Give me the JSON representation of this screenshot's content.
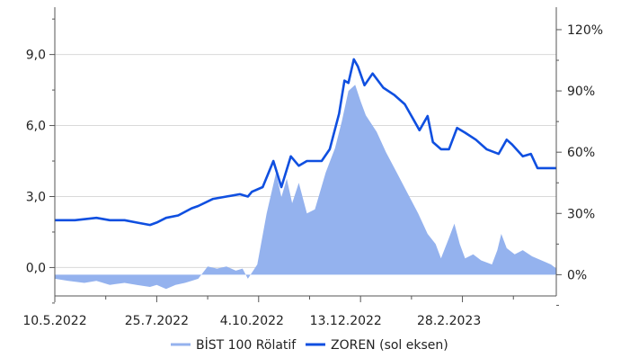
{
  "chart_data": {
    "type": "line",
    "x_axis": {
      "ticks": [
        "10.5.2022",
        "25.7.2022",
        "4.10.2022",
        "13.12.2022",
        "28.2.2023"
      ],
      "tick_dates": [
        "2022-05-10",
        "2022-07-25",
        "2022-10-04",
        "2022-12-13",
        "2023-02-28"
      ],
      "range": [
        "2022-05-10",
        "2023-05-19"
      ]
    },
    "y_left": {
      "ticks": [
        "0,0",
        "3,0",
        "6,0",
        "9,0"
      ],
      "tick_values": [
        0,
        3,
        6,
        9
      ],
      "range": [
        -1.2,
        11
      ]
    },
    "y_right": {
      "ticks": [
        "0%",
        "30%",
        "60%",
        "90%",
        "120%"
      ],
      "tick_values": [
        0,
        30,
        60,
        90,
        120
      ],
      "range": [
        -10.4,
        131
      ]
    },
    "grid": true,
    "legend_position": "bottom",
    "series": [
      {
        "name": "BİST 100 Rölatif",
        "type": "area",
        "axis": "right",
        "color": "#94b2ee",
        "points": [
          [
            "2022-05-10",
            -2
          ],
          [
            "2022-05-20",
            -3
          ],
          [
            "2022-06-01",
            -4
          ],
          [
            "2022-06-10",
            -3
          ],
          [
            "2022-06-20",
            -5
          ],
          [
            "2022-07-01",
            -4
          ],
          [
            "2022-07-10",
            -5
          ],
          [
            "2022-07-20",
            -6
          ],
          [
            "2022-07-25",
            -5
          ],
          [
            "2022-08-01",
            -7
          ],
          [
            "2022-08-08",
            -5
          ],
          [
            "2022-08-15",
            -4
          ],
          [
            "2022-08-20",
            -3
          ],
          [
            "2022-08-25",
            -2
          ],
          [
            "2022-09-01",
            4
          ],
          [
            "2022-09-08",
            3
          ],
          [
            "2022-09-15",
            4
          ],
          [
            "2022-09-22",
            2
          ],
          [
            "2022-09-27",
            3
          ],
          [
            "2022-10-01",
            -2
          ],
          [
            "2022-10-04",
            1
          ],
          [
            "2022-10-08",
            5
          ],
          [
            "2022-10-15",
            30
          ],
          [
            "2022-10-22",
            50
          ],
          [
            "2022-10-26",
            38
          ],
          [
            "2022-10-30",
            47
          ],
          [
            "2022-11-03",
            35
          ],
          [
            "2022-11-08",
            45
          ],
          [
            "2022-11-14",
            30
          ],
          [
            "2022-11-20",
            32
          ],
          [
            "2022-11-28",
            50
          ],
          [
            "2022-12-05",
            62
          ],
          [
            "2022-12-10",
            75
          ],
          [
            "2022-12-15",
            90
          ],
          [
            "2022-12-20",
            93
          ],
          [
            "2022-12-24",
            85
          ],
          [
            "2022-12-28",
            78
          ],
          [
            "2023-01-05",
            70
          ],
          [
            "2023-01-12",
            60
          ],
          [
            "2023-01-20",
            50
          ],
          [
            "2023-01-28",
            40
          ],
          [
            "2023-02-05",
            30
          ],
          [
            "2023-02-12",
            20
          ],
          [
            "2023-02-18",
            15
          ],
          [
            "2023-02-22",
            8
          ],
          [
            "2023-02-28",
            18
          ],
          [
            "2023-03-04",
            25
          ],
          [
            "2023-03-08",
            15
          ],
          [
            "2023-03-12",
            8
          ],
          [
            "2023-03-18",
            10
          ],
          [
            "2023-03-24",
            7
          ],
          [
            "2023-04-01",
            5
          ],
          [
            "2023-04-05",
            12
          ],
          [
            "2023-04-08",
            20
          ],
          [
            "2023-04-12",
            13
          ],
          [
            "2023-04-18",
            10
          ],
          [
            "2023-04-24",
            12
          ],
          [
            "2023-05-01",
            9
          ],
          [
            "2023-05-08",
            7
          ],
          [
            "2023-05-15",
            5
          ],
          [
            "2023-05-19",
            3
          ]
        ]
      },
      {
        "name": "ZOREN (sol eksen)",
        "type": "line",
        "axis": "left",
        "color": "#0f4fe0",
        "points": [
          [
            "2022-05-10",
            2.0
          ],
          [
            "2022-05-25",
            2.0
          ],
          [
            "2022-06-10",
            2.1
          ],
          [
            "2022-06-20",
            2.0
          ],
          [
            "2022-07-01",
            2.0
          ],
          [
            "2022-07-10",
            1.9
          ],
          [
            "2022-07-20",
            1.8
          ],
          [
            "2022-07-25",
            1.9
          ],
          [
            "2022-08-01",
            2.1
          ],
          [
            "2022-08-10",
            2.2
          ],
          [
            "2022-08-20",
            2.5
          ],
          [
            "2022-08-25",
            2.6
          ],
          [
            "2022-09-05",
            2.9
          ],
          [
            "2022-09-15",
            3.0
          ],
          [
            "2022-09-25",
            3.1
          ],
          [
            "2022-10-01",
            3.0
          ],
          [
            "2022-10-04",
            3.2
          ],
          [
            "2022-10-12",
            3.4
          ],
          [
            "2022-10-20",
            4.5
          ],
          [
            "2022-10-26",
            3.4
          ],
          [
            "2022-11-02",
            4.7
          ],
          [
            "2022-11-08",
            4.3
          ],
          [
            "2022-11-14",
            4.5
          ],
          [
            "2022-11-25",
            4.5
          ],
          [
            "2022-12-01",
            5.0
          ],
          [
            "2022-12-08",
            6.5
          ],
          [
            "2022-12-12",
            7.9
          ],
          [
            "2022-12-15",
            7.8
          ],
          [
            "2022-12-19",
            8.8
          ],
          [
            "2022-12-22",
            8.5
          ],
          [
            "2022-12-27",
            7.7
          ],
          [
            "2023-01-02",
            8.2
          ],
          [
            "2023-01-10",
            7.6
          ],
          [
            "2023-01-18",
            7.3
          ],
          [
            "2023-01-26",
            6.9
          ],
          [
            "2023-02-01",
            6.3
          ],
          [
            "2023-02-06",
            5.8
          ],
          [
            "2023-02-12",
            6.4
          ],
          [
            "2023-02-16",
            5.3
          ],
          [
            "2023-02-22",
            5.0
          ],
          [
            "2023-02-28",
            5.0
          ],
          [
            "2023-03-06",
            5.9
          ],
          [
            "2023-03-12",
            5.7
          ],
          [
            "2023-03-20",
            5.4
          ],
          [
            "2023-03-28",
            5.0
          ],
          [
            "2023-04-06",
            4.8
          ],
          [
            "2023-04-12",
            5.4
          ],
          [
            "2023-04-16",
            5.2
          ],
          [
            "2023-04-24",
            4.7
          ],
          [
            "2023-04-30",
            4.8
          ],
          [
            "2023-05-05",
            4.2
          ],
          [
            "2023-05-10",
            4.2
          ],
          [
            "2023-05-19",
            4.2
          ]
        ]
      }
    ]
  }
}
